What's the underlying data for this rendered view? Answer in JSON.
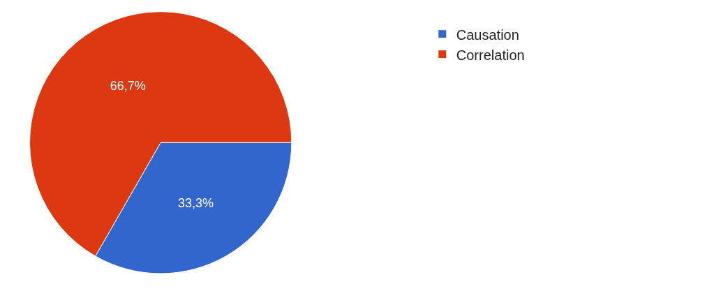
{
  "chart_data": {
    "type": "pie",
    "categories": [
      "Causation",
      "Correlation"
    ],
    "values": [
      33.3,
      66.7
    ],
    "colors": [
      "#3366cc",
      "#dc3912"
    ],
    "value_labels": [
      "33,3%",
      "66,7%"
    ],
    "legend": "top right"
  }
}
